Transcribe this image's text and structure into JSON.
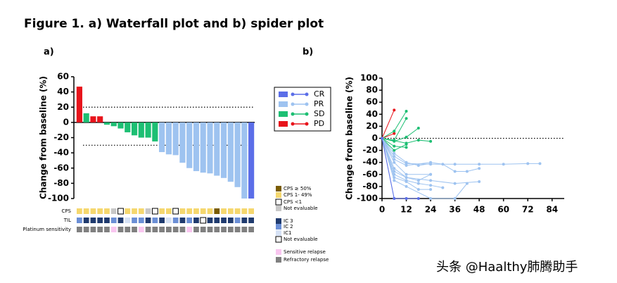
{
  "title": "Figure 1. a) Waterfall plot and b) spider plot",
  "watermark": "头条 @Haalthy肺腾助手",
  "chart_data": [
    {
      "type": "bar",
      "panel": "a)",
      "ylabel": "Change from baseline (%)",
      "values": [
        47,
        12,
        8,
        8,
        -3,
        -5,
        -8,
        -13,
        -17,
        -20,
        -20,
        -25,
        -39,
        -42,
        -43,
        -53,
        -60,
        -64,
        -66,
        -67,
        -70,
        -73,
        -78,
        -85,
        -100,
        -100
      ],
      "colors": [
        "#e8141b",
        "#1dbf73",
        "#e8141b",
        "#e8141b",
        "#1dbf73",
        "#1dbf73",
        "#1dbf73",
        "#1dbf73",
        "#1dbf73",
        "#1dbf73",
        "#1dbf73",
        "#1dbf73",
        "#9ec3f0",
        "#9ec3f0",
        "#9ec3f0",
        "#9ec3f0",
        "#9ec3f0",
        "#9ec3f0",
        "#9ec3f0",
        "#9ec3f0",
        "#9ec3f0",
        "#9ec3f0",
        "#9ec3f0",
        "#9ec3f0",
        "#9ec3f0",
        "#5b6ee8"
      ],
      "ylim": [
        -100,
        60
      ],
      "yticks": [
        60,
        40,
        20,
        0,
        -20,
        -40,
        -60,
        -80,
        -100
      ],
      "reference_lines": [
        20,
        -30
      ],
      "tracks": [
        {
          "label": "CPS",
          "legend": [
            {
              "label": "CPS ≥ 50%",
              "color": "#7a5c00"
            },
            {
              "label": "CPS 1- 49%",
              "color": "#f5d76e"
            },
            {
              "label": "CPS <1",
              "color": "#ffffff"
            },
            {
              "label": "Not evaluable",
              "color": "#c8c8c8"
            }
          ],
          "cells": [
            1,
            1,
            1,
            1,
            1,
            3,
            2,
            1,
            1,
            1,
            3,
            2,
            1,
            1,
            2,
            1,
            1,
            1,
            1,
            1,
            0,
            1,
            1,
            1,
            1,
            1
          ]
        },
        {
          "label": "TIL",
          "legend": [
            {
              "label": "IC 3",
              "color": "#1f3a6e"
            },
            {
              "label": "IC 2",
              "color": "#6b8fd6"
            },
            {
              "label": "IC1",
              "color": "#d6e2f5"
            },
            {
              "label": "Not evaluable",
              "color": "#ffffff"
            }
          ],
          "cells": [
            1,
            0,
            0,
            0,
            0,
            1,
            0,
            2,
            1,
            1,
            0,
            1,
            0,
            2,
            1,
            0,
            1,
            0,
            3,
            0,
            0,
            0,
            0,
            1,
            0,
            0
          ]
        },
        {
          "label": "Platinum sensitivity",
          "legend": [
            {
              "label": "Sensitive relapse",
              "color": "#f9c6f0"
            },
            {
              "label": "Refractory relapse",
              "color": "#808080"
            }
          ],
          "cells": [
            1,
            1,
            1,
            1,
            1,
            0,
            1,
            1,
            1,
            0,
            1,
            1,
            1,
            1,
            1,
            1,
            0,
            1,
            1,
            1,
            1,
            1,
            1,
            1,
            1,
            1
          ]
        }
      ]
    },
    {
      "type": "line",
      "panel": "b)",
      "ylabel": "Change from baseline (%)",
      "xlim": [
        0,
        90
      ],
      "xticks": [
        0,
        12,
        24,
        36,
        48,
        60,
        72,
        84
      ],
      "ylim": [
        -100,
        100
      ],
      "yticks": [
        100,
        80,
        60,
        40,
        20,
        0,
        -20,
        -40,
        -60,
        -80,
        -100
      ],
      "reference_lines": [
        0
      ],
      "legend": [
        {
          "name": "CR",
          "color": "#5b6ee8"
        },
        {
          "name": "PR",
          "color": "#9ec3f0"
        },
        {
          "name": "SD",
          "color": "#1dbf73"
        },
        {
          "name": "PD",
          "color": "#e8141b"
        }
      ],
      "series": [
        {
          "color": "#e8141b",
          "x": [
            0,
            6
          ],
          "values": [
            0,
            47
          ]
        },
        {
          "color": "#e8141b",
          "x": [
            0,
            6
          ],
          "values": [
            0,
            8
          ]
        },
        {
          "color": "#1dbf73",
          "x": [
            0,
            6,
            12
          ],
          "values": [
            0,
            12,
            45
          ]
        },
        {
          "color": "#1dbf73",
          "x": [
            0,
            6,
            12
          ],
          "values": [
            0,
            -3,
            33
          ]
        },
        {
          "color": "#1dbf73",
          "x": [
            0,
            6,
            12,
            18
          ],
          "values": [
            0,
            -5,
            2,
            17
          ]
        },
        {
          "color": "#1dbf73",
          "x": [
            0,
            12,
            18,
            24
          ],
          "values": [
            0,
            -8,
            -3,
            -5
          ]
        },
        {
          "color": "#1dbf73",
          "x": [
            0,
            6,
            12
          ],
          "values": [
            0,
            -13,
            -15
          ]
        },
        {
          "color": "#1dbf73",
          "x": [
            0,
            6,
            12
          ],
          "values": [
            0,
            -20,
            -10
          ]
        },
        {
          "color": "#9ec3f0",
          "x": [
            0,
            6,
            12,
            18,
            24
          ],
          "values": [
            0,
            -25,
            -40,
            -45,
            -42
          ]
        },
        {
          "color": "#9ec3f0",
          "x": [
            0,
            6,
            12,
            24,
            36,
            48,
            60,
            72,
            78
          ],
          "values": [
            0,
            -30,
            -42,
            -43,
            -43,
            -43,
            -43,
            -42,
            -42
          ]
        },
        {
          "color": "#9ec3f0",
          "x": [
            0,
            6,
            12,
            24,
            30,
            36,
            42,
            48
          ],
          "values": [
            0,
            -35,
            -45,
            -40,
            -43,
            -55,
            -55,
            -50
          ]
        },
        {
          "color": "#9ec3f0",
          "x": [
            0,
            6,
            12,
            24
          ],
          "values": [
            0,
            -40,
            -60,
            -60
          ]
        },
        {
          "color": "#9ec3f0",
          "x": [
            0,
            6,
            12,
            18,
            24
          ],
          "values": [
            0,
            -50,
            -65,
            -70,
            -60
          ]
        },
        {
          "color": "#9ec3f0",
          "x": [
            0,
            6,
            12,
            24,
            36,
            48
          ],
          "values": [
            0,
            -55,
            -65,
            -70,
            -75,
            -72
          ]
        },
        {
          "color": "#9ec3f0",
          "x": [
            0,
            6,
            12,
            18,
            24,
            30
          ],
          "values": [
            0,
            -60,
            -70,
            -75,
            -78,
            -82
          ]
        },
        {
          "color": "#9ec3f0",
          "x": [
            0,
            6,
            12,
            18,
            24
          ],
          "values": [
            0,
            -65,
            -72,
            -85,
            -85
          ]
        },
        {
          "color": "#9ec3f0",
          "x": [
            0,
            6,
            12,
            24,
            36,
            42
          ],
          "values": [
            0,
            -70,
            -80,
            -100,
            -100,
            -75
          ]
        },
        {
          "color": "#9ec3f0",
          "x": [
            0,
            6,
            12
          ],
          "values": [
            0,
            -100,
            -100
          ]
        },
        {
          "color": "#5b6ee8",
          "x": [
            0,
            6,
            12,
            18
          ],
          "values": [
            0,
            -100,
            -100,
            -100
          ]
        }
      ]
    }
  ]
}
